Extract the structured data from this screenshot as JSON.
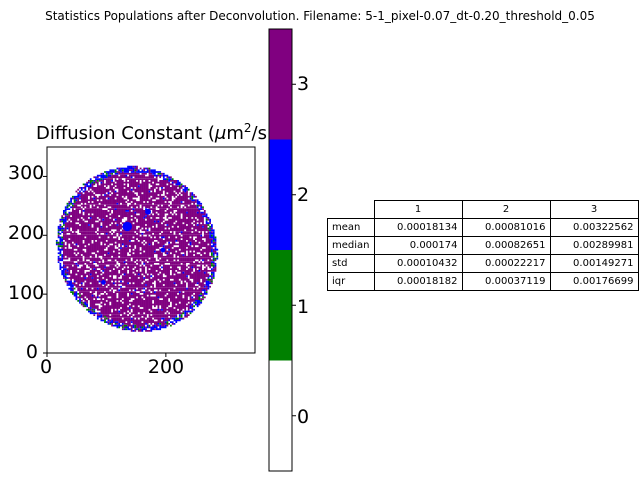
{
  "suptitle": "Statistics Populations after Deconvolution. Filename: 5-1_pixel-0.07_dt-0.20_threshold_0.05",
  "image_axes": {
    "title_prefix": "Diffusion Constant (",
    "title_mu": "μ",
    "title_unit": "m",
    "title_sup": "2",
    "title_suffix": "/s)",
    "yticks": [
      "300",
      "200",
      "100",
      "0"
    ],
    "xticks": [
      "0",
      "200"
    ]
  },
  "colorbar": {
    "ticks": [
      "3",
      "2",
      "1",
      "0"
    ],
    "colors": [
      "#800080",
      "#0000ff",
      "#008000",
      "#ffffff"
    ]
  },
  "table": {
    "columns": [
      "1",
      "2",
      "3"
    ],
    "rows": [
      {
        "label": "mean",
        "values": [
          "0.00018134",
          "0.00081016",
          "0.00322562"
        ]
      },
      {
        "label": "median",
        "values": [
          "0.000174",
          "0.00082651",
          "0.00289981"
        ]
      },
      {
        "label": "std",
        "values": [
          "0.00010432",
          "0.00022217",
          "0.00149271"
        ]
      },
      {
        "label": "iqr",
        "values": [
          "0.00018182",
          "0.00037119",
          "0.00176699"
        ]
      }
    ]
  },
  "chart_data": [
    {
      "type": "heatmap",
      "title": "Diffusion Constant (μm²/s)",
      "xlim": [
        0,
        350
      ],
      "ylim": [
        0,
        350
      ],
      "xticks": [
        0,
        200
      ],
      "yticks": [
        0,
        100,
        200,
        300
      ],
      "colormap_levels": [
        0,
        1,
        2,
        3
      ],
      "colors": [
        "#ffffff",
        "#008000",
        "#0000ff",
        "#800080"
      ],
      "colorbar_range": [
        -0.5,
        3.5
      ],
      "region": {
        "center": [
          150,
          175
        ],
        "radius_x": 135,
        "radius_y": 140
      }
    },
    {
      "type": "table",
      "columns": [
        "1",
        "2",
        "3"
      ],
      "row_labels": [
        "mean",
        "median",
        "std",
        "iqr"
      ],
      "values": [
        [
          0.00018134,
          0.00081016,
          0.00322562
        ],
        [
          0.000174,
          0.00082651,
          0.00289981
        ],
        [
          0.00010432,
          0.00022217,
          0.00149271
        ],
        [
          0.00018182,
          0.00037119,
          0.00176699
        ]
      ]
    }
  ]
}
